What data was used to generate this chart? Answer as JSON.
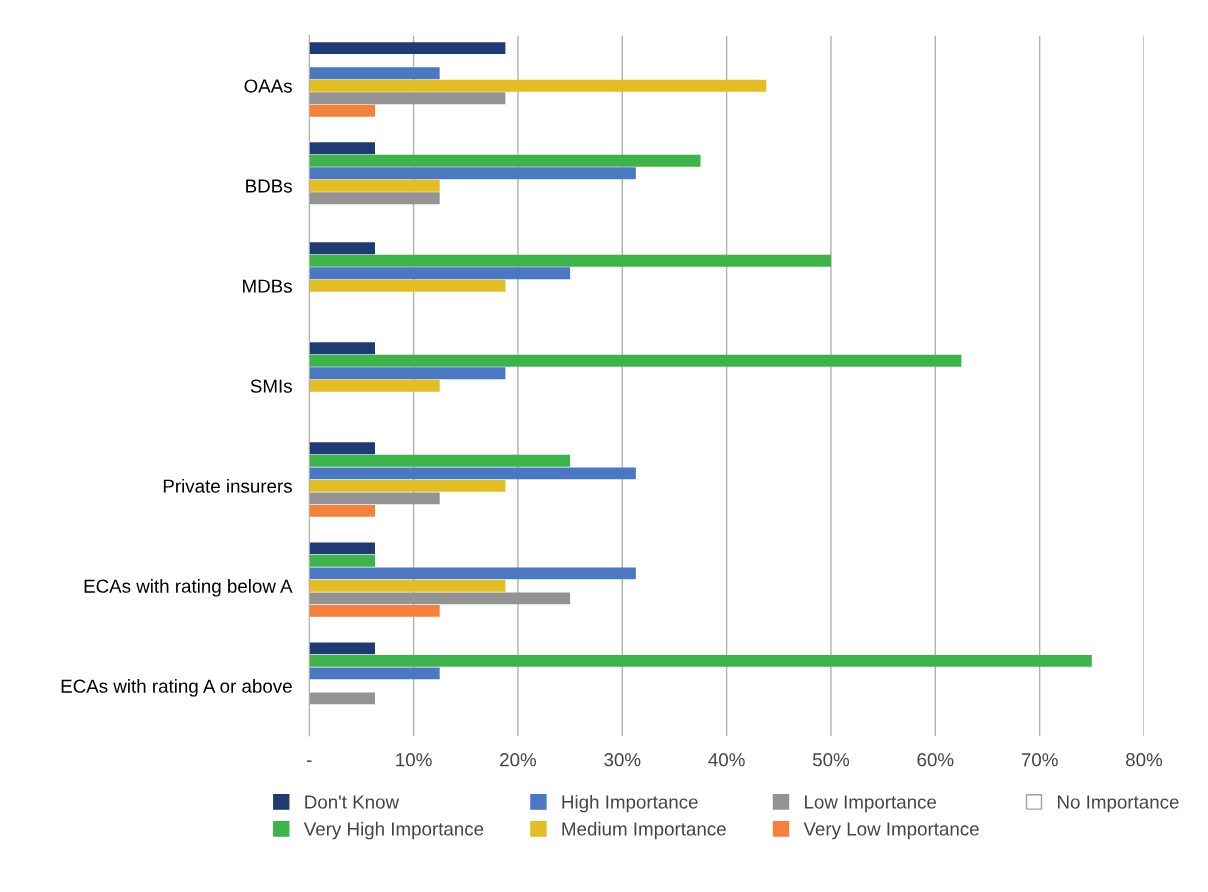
{
  "chart_data": {
    "type": "bar",
    "orientation": "horizontal",
    "categories": [
      "OAAs",
      "BDBs",
      "MDBs",
      "SMIs",
      "Private insurers",
      "ECAs with rating below A",
      "ECAs with rating A or above"
    ],
    "series": [
      {
        "name": "Don't Know",
        "color": "#1f3b73",
        "values": [
          18.8,
          6.3,
          6.3,
          6.3,
          6.3,
          6.3,
          6.3
        ]
      },
      {
        "name": "Very High Importance",
        "color": "#3cb44a",
        "values": [
          null,
          37.5,
          50,
          62.5,
          25,
          6.3,
          75
        ]
      },
      {
        "name": "High Importance",
        "color": "#4a78c2",
        "values": [
          12.5,
          31.3,
          25,
          18.8,
          31.3,
          31.3,
          12.5
        ]
      },
      {
        "name": "Medium Importance",
        "color": "#e3bd22",
        "values": [
          43.8,
          12.5,
          18.8,
          12.5,
          18.8,
          18.8,
          null
        ]
      },
      {
        "name": "Low Importance",
        "color": "#939393",
        "values": [
          18.8,
          12.5,
          null,
          null,
          12.5,
          25,
          6.3
        ]
      },
      {
        "name": "Very Low Importance",
        "color": "#f5813a",
        "values": [
          6.3,
          null,
          null,
          null,
          6.3,
          12.5,
          null
        ]
      },
      {
        "name": "No Importance",
        "color": "#ffffff",
        "values": [
          null,
          null,
          null,
          null,
          null,
          null,
          null
        ]
      }
    ],
    "xlim": [
      0,
      80
    ],
    "xticks": [
      {
        "value": 0,
        "label": "-"
      },
      {
        "value": 10,
        "label": "10%"
      },
      {
        "value": 20,
        "label": "20%"
      },
      {
        "value": 30,
        "label": "30%"
      },
      {
        "value": 40,
        "label": "40%"
      },
      {
        "value": 50,
        "label": "50%"
      },
      {
        "value": 60,
        "label": "60%"
      },
      {
        "value": 70,
        "label": "70%"
      },
      {
        "value": 80,
        "label": "80%"
      }
    ],
    "grid": "x",
    "legend": "bottom"
  }
}
